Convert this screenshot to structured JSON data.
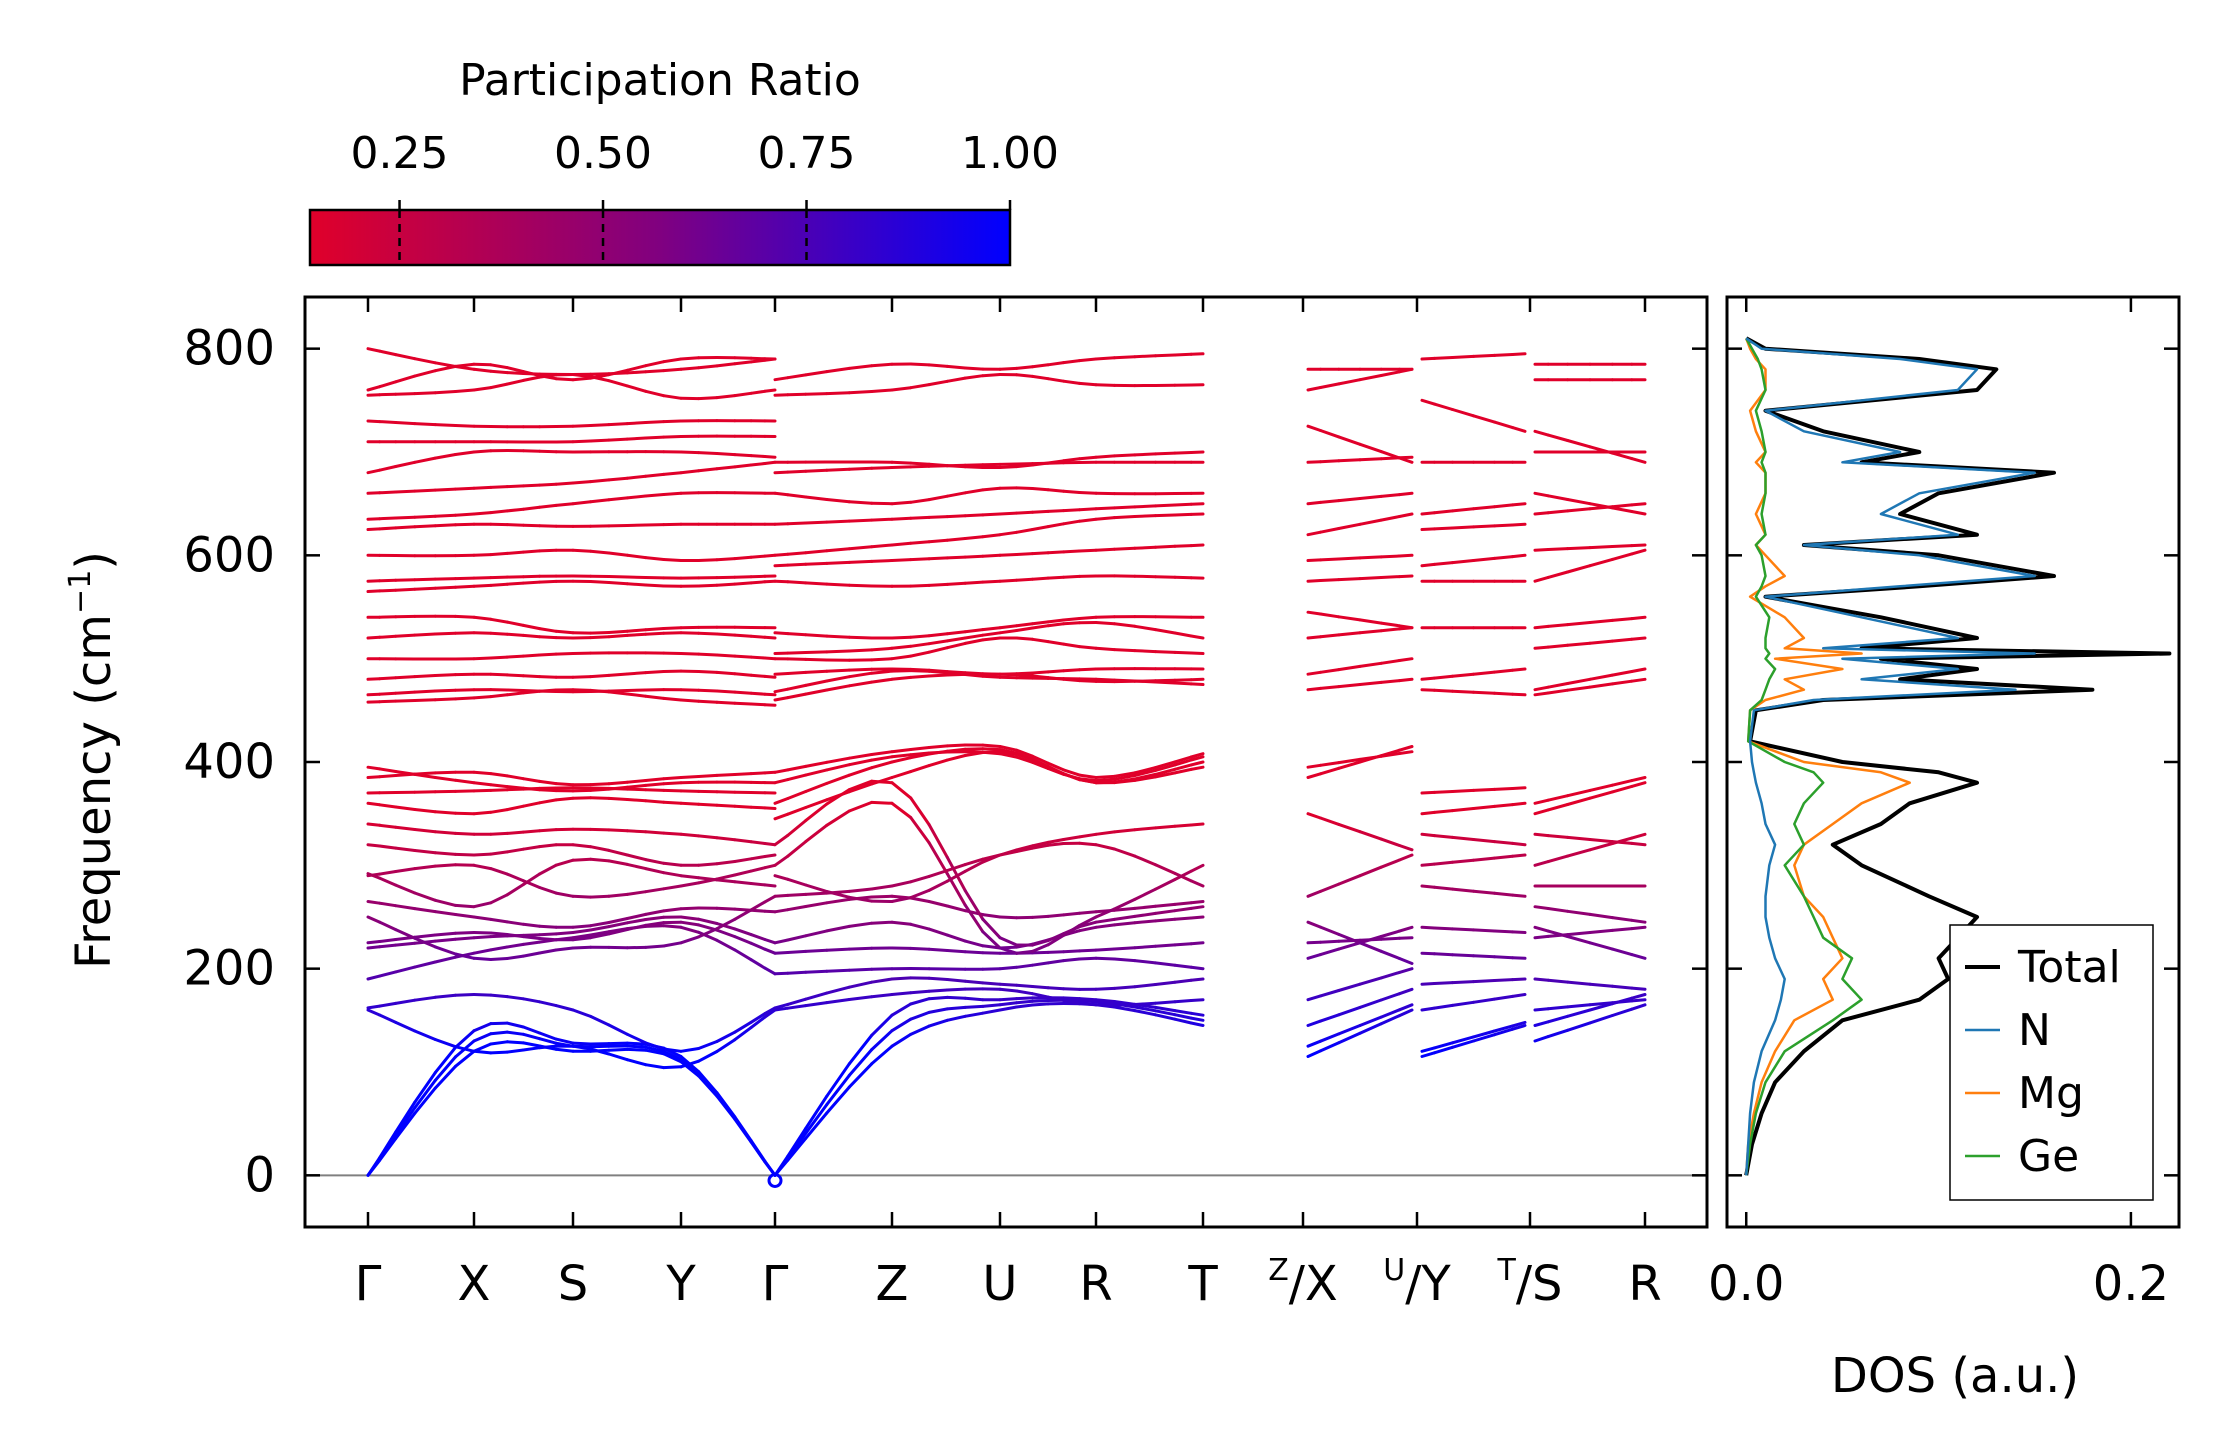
{
  "colors": {
    "cmap_low": "#e0002a",
    "cmap_mid": "#800080",
    "cmap_high": "#0000ff",
    "total": "#000000",
    "N": "#1f77b4",
    "Mg": "#ff7f0e",
    "Ge": "#2ca02c",
    "zero_line": "#808080"
  },
  "colorbar": {
    "label": "Participation Ratio",
    "min": 0.14,
    "max": 1.0,
    "ticks": [
      0.25,
      0.5,
      0.75,
      1.0
    ],
    "tick_labels": [
      "0.25",
      "0.50",
      "0.75",
      "1.00"
    ]
  },
  "chart_data": [
    {
      "type": "line",
      "title": "",
      "ylabel": "Frequency (cm",
      "ylabel_sup": "−1",
      "ylabel_close": ")",
      "ylim": [
        -50,
        850
      ],
      "yticks": [
        0,
        200,
        400,
        600,
        800
      ],
      "ytick_labels": [
        "0",
        "200",
        "400",
        "600",
        "800"
      ],
      "path_labels": [
        {
          "main": "Γ"
        },
        {
          "main": "X"
        },
        {
          "main": "S"
        },
        {
          "main": "Y"
        },
        {
          "main": "Γ"
        },
        {
          "main": "Z"
        },
        {
          "main": "U"
        },
        {
          "main": "R"
        },
        {
          "main": "T"
        },
        {
          "sup": "Z",
          "main": "/X"
        },
        {
          "sup": "U",
          "main": "/Y"
        },
        {
          "sup": "T",
          "main": "/S"
        },
        {
          "main": "R"
        }
      ],
      "segments": [
        {
          "from": 0,
          "to": 4,
          "bands": [
            [
              0,
              120,
              120,
              110,
              0
            ],
            [
              0,
              130,
              125,
              112,
              0
            ],
            [
              0,
              140,
              128,
              115,
              0
            ],
            [
              160,
              120,
              125,
              105,
              160
            ],
            [
              162,
              175,
              160,
              120,
              162
            ],
            [
              190,
              215,
              230,
              240,
              195
            ],
            [
              220,
              230,
              235,
              250,
              225
            ],
            [
              225,
              235,
              228,
              245,
              215
            ],
            [
              250,
              210,
              220,
              225,
              270
            ],
            [
              265,
              250,
              240,
              258,
              255
            ],
            [
              290,
              300,
              270,
              280,
              300
            ],
            [
              292,
              260,
              305,
              290,
              280
            ],
            [
              320,
              310,
              320,
              300,
              310
            ],
            [
              340,
              330,
              335,
              330,
              320
            ],
            [
              360,
              350,
              365,
              360,
              355
            ],
            [
              370,
              372,
              375,
              372,
              370
            ],
            [
              385,
              390,
              378,
              385,
              390
            ],
            [
              395,
              380,
              372,
              380,
              380
            ],
            [
              458,
              462,
              470,
              460,
              455
            ],
            [
              465,
              470,
              468,
              470,
              465
            ],
            [
              480,
              485,
              482,
              488,
              482
            ],
            [
              500,
              500,
              505,
              505,
              500
            ],
            [
              520,
              525,
              520,
              525,
              520
            ],
            [
              540,
              540,
              525,
              530,
              530
            ],
            [
              565,
              570,
              575,
              570,
              575
            ],
            [
              575,
              578,
              580,
              578,
              580
            ],
            [
              600,
              600,
              605,
              595,
              600
            ],
            [
              625,
              630,
              628,
              630,
              630
            ],
            [
              635,
              640,
              650,
              660,
              660
            ],
            [
              660,
              665,
              670,
              680,
              690
            ],
            [
              680,
              700,
              700,
              700,
              695
            ],
            [
              710,
              710,
              710,
              715,
              715
            ],
            [
              730,
              725,
              725,
              730,
              730
            ],
            [
              755,
              760,
              775,
              752,
              760
            ],
            [
              760,
              785,
              770,
              790,
              790
            ],
            [
              800,
              780,
              775,
              780,
              790
            ]
          ]
        },
        {
          "from": 4,
          "to": 8,
          "bands": [
            [
              0,
              125,
              160,
              165,
              145
            ],
            [
              0,
              140,
              165,
              168,
              150
            ],
            [
              0,
              155,
              170,
              170,
              155
            ],
            [
              160,
              175,
              180,
              165,
              170
            ],
            [
              162,
              190,
              185,
              180,
              190
            ],
            [
              195,
              200,
              200,
              210,
              200
            ],
            [
              215,
              220,
              215,
              218,
              225
            ],
            [
              225,
              245,
              220,
              240,
              250
            ],
            [
              255,
              270,
              250,
              255,
              265
            ],
            [
              270,
              280,
              310,
              320,
              280
            ],
            [
              290,
              265,
              310,
              330,
              340
            ],
            [
              300,
              360,
              220,
              250,
              300
            ],
            [
              320,
              380,
              230,
              245,
              260
            ],
            [
              345,
              385,
              410,
              380,
              395
            ],
            [
              360,
              400,
              412,
              380,
              400
            ],
            [
              380,
              405,
              408,
              382,
              405
            ],
            [
              390,
              410,
              415,
              385,
              408
            ],
            [
              460,
              480,
              485,
              478,
              480
            ],
            [
              468,
              488,
              482,
              480,
              475
            ],
            [
              485,
              490,
              485,
              490,
              490
            ],
            [
              500,
              500,
              520,
              510,
              505
            ],
            [
              505,
              510,
              525,
              535,
              520
            ],
            [
              525,
              520,
              530,
              540,
              540
            ],
            [
              575,
              570,
              575,
              580,
              578
            ],
            [
              590,
              595,
              600,
              605,
              610
            ],
            [
              600,
              610,
              620,
              635,
              640
            ],
            [
              630,
              635,
              640,
              645,
              650
            ],
            [
              660,
              650,
              665,
              660,
              660
            ],
            [
              680,
              685,
              688,
              690,
              690
            ],
            [
              690,
              690,
              685,
              695,
              700
            ],
            [
              755,
              760,
              775,
              765,
              765
            ],
            [
              770,
              785,
              780,
              790,
              795
            ]
          ]
        },
        {
          "from": 9,
          "to": 10,
          "bands": [
            [
              115,
              160
            ],
            [
              125,
              165
            ],
            [
              145,
              180
            ],
            [
              170,
              200
            ],
            [
              210,
              240
            ],
            [
              225,
              230
            ],
            [
              245,
              205
            ],
            [
              270,
              310
            ],
            [
              350,
              315
            ],
            [
              385,
              415
            ],
            [
              395,
              410
            ],
            [
              470,
              480
            ],
            [
              485,
              500
            ],
            [
              520,
              530
            ],
            [
              545,
              530
            ],
            [
              575,
              580
            ],
            [
              595,
              600
            ],
            [
              620,
              640
            ],
            [
              650,
              660
            ],
            [
              690,
              695
            ],
            [
              725,
              690
            ],
            [
              760,
              780
            ],
            [
              780,
              780
            ]
          ]
        },
        {
          "from": 10,
          "to": 11,
          "bands": [
            [
              115,
              145
            ],
            [
              120,
              148
            ],
            [
              160,
              175
            ],
            [
              185,
              190
            ],
            [
              215,
              210
            ],
            [
              240,
              235
            ],
            [
              280,
              270
            ],
            [
              300,
              310
            ],
            [
              330,
              320
            ],
            [
              350,
              360
            ],
            [
              370,
              375
            ],
            [
              470,
              465
            ],
            [
              480,
              490
            ],
            [
              530,
              530
            ],
            [
              575,
              575
            ],
            [
              590,
              600
            ],
            [
              625,
              630
            ],
            [
              640,
              650
            ],
            [
              690,
              690
            ],
            [
              750,
              720
            ],
            [
              790,
              795
            ]
          ]
        },
        {
          "from": 11,
          "to": 12,
          "bands": [
            [
              130,
              165
            ],
            [
              145,
              175
            ],
            [
              160,
              170
            ],
            [
              190,
              180
            ],
            [
              230,
              240
            ],
            [
              240,
              210
            ],
            [
              260,
              245
            ],
            [
              280,
              280
            ],
            [
              300,
              330
            ],
            [
              330,
              320
            ],
            [
              350,
              380
            ],
            [
              360,
              385
            ],
            [
              465,
              480
            ],
            [
              470,
              490
            ],
            [
              510,
              520
            ],
            [
              530,
              540
            ],
            [
              575,
              605
            ],
            [
              605,
              610
            ],
            [
              640,
              650
            ],
            [
              660,
              640
            ],
            [
              700,
              700
            ],
            [
              720,
              690
            ],
            [
              770,
              770
            ],
            [
              785,
              785
            ]
          ]
        }
      ]
    },
    {
      "type": "line",
      "title": "",
      "xlabel": "DOS (a.u.)",
      "xlim": [
        -0.01,
        0.225
      ],
      "xticks": [
        0.0,
        0.2
      ],
      "xtick_labels": [
        "0.0",
        "0.2"
      ],
      "ylim": [
        -50,
        850
      ],
      "legend_position": "lower-right",
      "freq": [
        0,
        30,
        60,
        90,
        120,
        150,
        170,
        190,
        210,
        230,
        250,
        270,
        300,
        320,
        340,
        360,
        380,
        390,
        400,
        420,
        450,
        460,
        470,
        480,
        490,
        500,
        505,
        510,
        520,
        540,
        560,
        570,
        580,
        600,
        610,
        620,
        640,
        660,
        680,
        690,
        700,
        720,
        740,
        760,
        780,
        790,
        800,
        810
      ],
      "series": [
        {
          "name": "Total",
          "values": [
            0,
            0.003,
            0.008,
            0.015,
            0.03,
            0.05,
            0.09,
            0.105,
            0.1,
            0.11,
            0.12,
            0.095,
            0.06,
            0.045,
            0.07,
            0.085,
            0.12,
            0.1,
            0.05,
            0.002,
            0.005,
            0.04,
            0.18,
            0.08,
            0.12,
            0.07,
            0.22,
            0.06,
            0.12,
            0.07,
            0.01,
            0.09,
            0.16,
            0.1,
            0.03,
            0.12,
            0.08,
            0.1,
            0.16,
            0.06,
            0.09,
            0.04,
            0.01,
            0.12,
            0.13,
            0.09,
            0.01,
            0
          ]
        },
        {
          "name": "N",
          "values": [
            0,
            0.001,
            0.002,
            0.004,
            0.008,
            0.015,
            0.018,
            0.02,
            0.015,
            0.012,
            0.01,
            0.01,
            0.012,
            0.015,
            0.01,
            0.008,
            0.005,
            0.004,
            0.003,
            0.002,
            0.004,
            0.035,
            0.14,
            0.06,
            0.11,
            0.05,
            0.15,
            0.04,
            0.11,
            0.06,
            0.01,
            0.08,
            0.15,
            0.09,
            0.03,
            0.11,
            0.07,
            0.09,
            0.15,
            0.05,
            0.08,
            0.03,
            0.01,
            0.11,
            0.12,
            0.08,
            0.008,
            0
          ]
        },
        {
          "name": "Mg",
          "values": [
            0,
            0.001,
            0.004,
            0.008,
            0.015,
            0.025,
            0.045,
            0.04,
            0.05,
            0.045,
            0.04,
            0.03,
            0.025,
            0.03,
            0.045,
            0.06,
            0.085,
            0.07,
            0.03,
            0.001,
            0.002,
            0.01,
            0.03,
            0.02,
            0.05,
            0.015,
            0.06,
            0.02,
            0.03,
            0.02,
            0.002,
            0.01,
            0.02,
            0.01,
            0.005,
            0.01,
            0.005,
            0.01,
            0.01,
            0.005,
            0.01,
            0.005,
            0.002,
            0.01,
            0.01,
            0.005,
            0.002,
            0
          ]
        },
        {
          "name": "Ge",
          "values": [
            0,
            0.002,
            0.005,
            0.01,
            0.02,
            0.045,
            0.06,
            0.05,
            0.055,
            0.04,
            0.035,
            0.03,
            0.02,
            0.03,
            0.025,
            0.03,
            0.04,
            0.035,
            0.02,
            0.001,
            0.002,
            0.008,
            0.01,
            0.012,
            0.015,
            0.01,
            0.012,
            0.01,
            0.01,
            0.012,
            0.005,
            0.008,
            0.01,
            0.008,
            0.005,
            0.01,
            0.008,
            0.01,
            0.01,
            0.008,
            0.01,
            0.008,
            0.005,
            0.01,
            0.008,
            0.006,
            0.003,
            0
          ]
        }
      ]
    }
  ]
}
